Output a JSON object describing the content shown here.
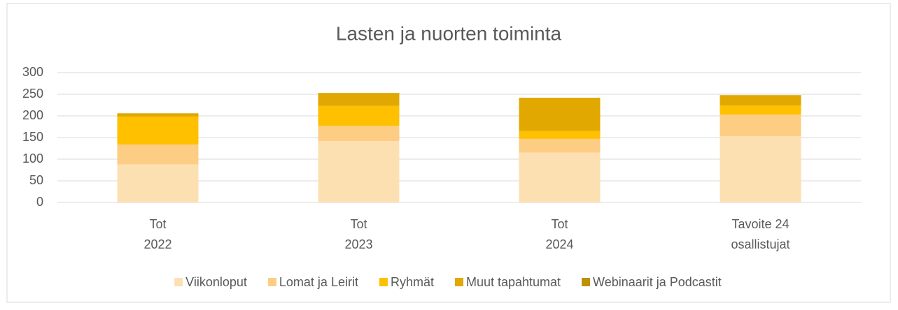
{
  "chart_data": {
    "type": "stacked_bar",
    "title": "Lasten ja nuorten toiminta",
    "categories": [
      [
        "Tot",
        "2022"
      ],
      [
        "Tot",
        "2023"
      ],
      [
        "Tot",
        "2024"
      ],
      [
        "Tavoite 24",
        "osallistujat"
      ]
    ],
    "series": [
      {
        "name": "Viikonloput",
        "color": "#fde0b2",
        "values": [
          88,
          142,
          115,
          153
        ]
      },
      {
        "name": "Lomat ja Leirit",
        "color": "#fdcd84",
        "values": [
          46,
          35,
          32,
          50
        ]
      },
      {
        "name": "Ryhmät",
        "color": "#ffc000",
        "values": [
          64,
          46,
          18,
          21
        ]
      },
      {
        "name": "Muut tapahtumat",
        "color": "#e0a800",
        "values": [
          8,
          30,
          77,
          24
        ]
      },
      {
        "name": "Webinaarit ja Podcastit",
        "color": "#bf9000",
        "values": [
          0,
          0,
          0,
          0
        ]
      }
    ],
    "ylim": [
      0,
      300
    ],
    "yticks": [
      0,
      50,
      100,
      150,
      200,
      250,
      300
    ],
    "grid": true,
    "legend": "bottom"
  }
}
